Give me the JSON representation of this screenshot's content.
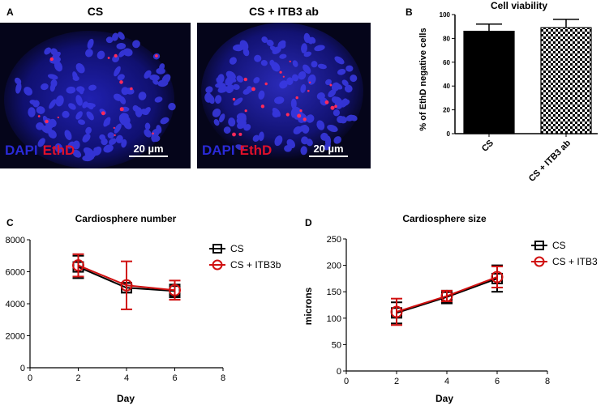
{
  "panels": {
    "a": "A",
    "b": "B",
    "c": "C",
    "d": "D"
  },
  "images": [
    {
      "title": "CS",
      "dapi": "DAPI",
      "ethd": "EthD",
      "scale": "20 µm"
    },
    {
      "title": "CS + ITB3 ab",
      "dapi": "DAPI",
      "ethd": "EthD",
      "scale": "20 µm"
    }
  ],
  "colors": {
    "dapi": "#2a2ad8",
    "ethd": "#e0102a",
    "series_cs": "#000000",
    "series_itb": "#d01010"
  },
  "chart_data": [
    {
      "type": "bar",
      "title": "Cell viability",
      "ylabel": "% of EthD negative cells",
      "categories": [
        "CS",
        "CS + ITB3 ab"
      ],
      "values": [
        86,
        89
      ],
      "errors": [
        6,
        7
      ],
      "ylim": [
        0,
        100
      ],
      "yticks": [
        0,
        20,
        40,
        60,
        80,
        100
      ],
      "fills": [
        "solid-black",
        "checkered"
      ]
    },
    {
      "type": "line",
      "title": "Cardiosphere number",
      "xlabel": "Day",
      "ylabel": "",
      "x": [
        2,
        4,
        6
      ],
      "xlim": [
        0,
        8
      ],
      "xticks": [
        0,
        2,
        4,
        6,
        8
      ],
      "ylim": [
        0,
        8000
      ],
      "yticks": [
        0,
        2000,
        4000,
        6000,
        8000
      ],
      "series": [
        {
          "name": "CS",
          "values": [
            6300,
            5000,
            4800
          ],
          "errors": [
            700,
            300,
            400
          ]
        },
        {
          "name": "CS + ITB3b",
          "values": [
            6400,
            5150,
            4850
          ],
          "errors": [
            700,
            1500,
            600
          ]
        }
      ]
    },
    {
      "type": "line",
      "title": "Cardiosphere size",
      "xlabel": "Day",
      "ylabel": "microns",
      "x": [
        2,
        4,
        6
      ],
      "xlim": [
        0,
        8
      ],
      "xticks": [
        0,
        2,
        4,
        6,
        8
      ],
      "ylim": [
        0,
        250
      ],
      "yticks": [
        0,
        50,
        100,
        150,
        200,
        250
      ],
      "series": [
        {
          "name": "CS",
          "values": [
            110,
            140,
            175
          ],
          "errors": [
            20,
            12,
            25
          ]
        },
        {
          "name": "CS + ITB3",
          "values": [
            112,
            142,
            178
          ],
          "errors": [
            25,
            10,
            20
          ]
        }
      ]
    }
  ]
}
